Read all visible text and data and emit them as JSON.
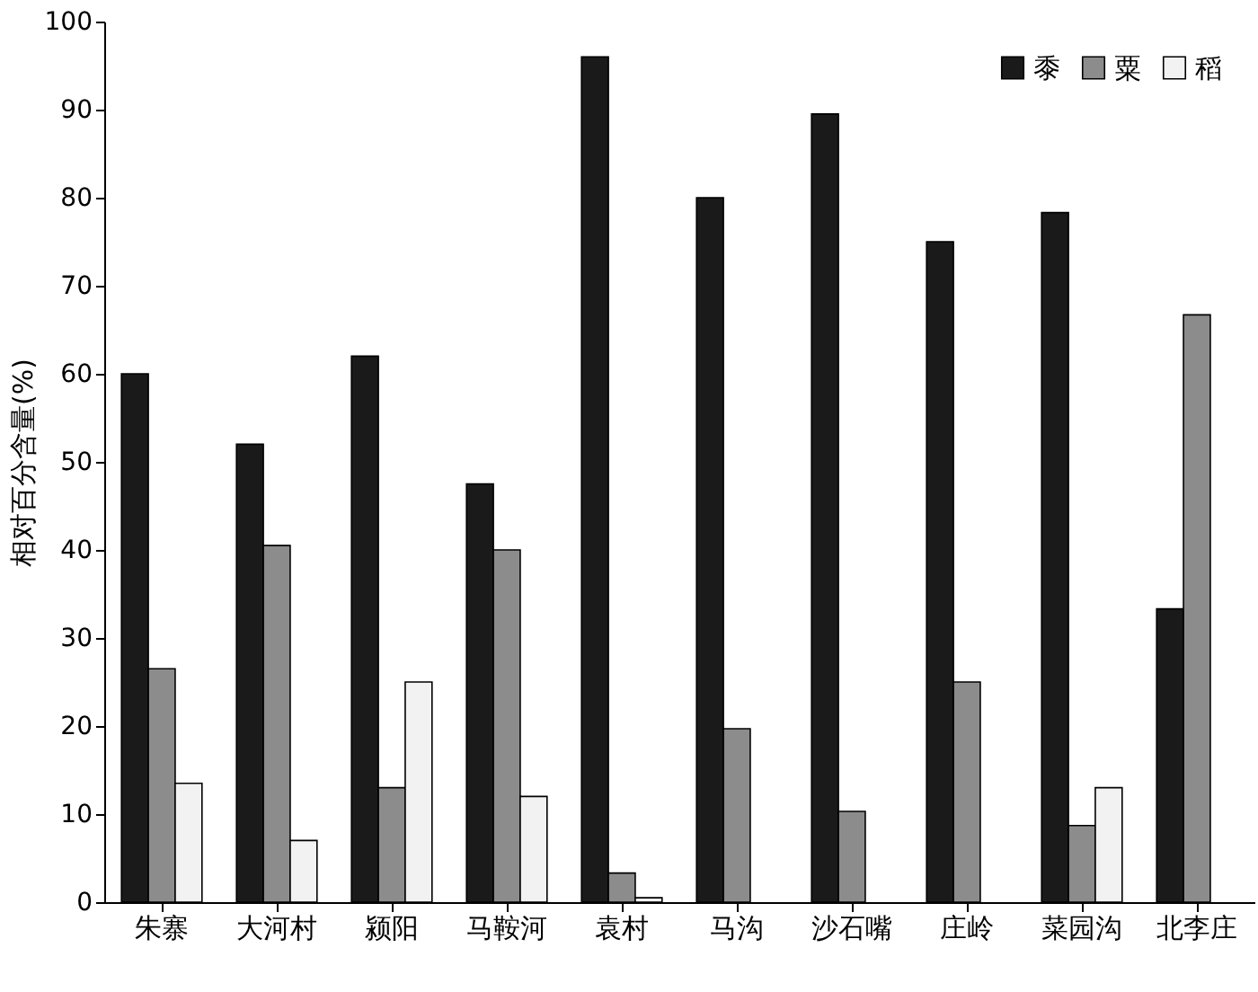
{
  "chart_data": {
    "type": "bar",
    "ylabel": "相对百分含量(%)",
    "categories": [
      "朱寨",
      "大河村",
      "颍阳",
      "马鞍河",
      "袁村",
      "马沟",
      "沙石嘴",
      "庄岭",
      "菜园沟",
      "北李庄"
    ],
    "series": [
      {
        "name": "黍",
        "color": "#1a1a1a",
        "values": [
          60,
          52,
          62,
          47.5,
          96,
          80,
          89.5,
          75,
          78.3,
          33.3
        ]
      },
      {
        "name": "粟",
        "color": "#8c8c8c",
        "values": [
          26.5,
          40.5,
          13,
          40,
          3.3,
          19.7,
          10.3,
          25,
          8.7,
          66.7
        ]
      },
      {
        "name": "稻",
        "color": "#f2f2f2",
        "values": [
          13.5,
          7,
          25,
          12,
          0.5,
          null,
          null,
          null,
          13,
          null
        ]
      }
    ],
    "ylim": [
      0,
      100
    ],
    "yticks": [
      0,
      10,
      20,
      30,
      40,
      50,
      60,
      70,
      80,
      90,
      100
    ],
    "grid": false,
    "legend": "top right"
  }
}
